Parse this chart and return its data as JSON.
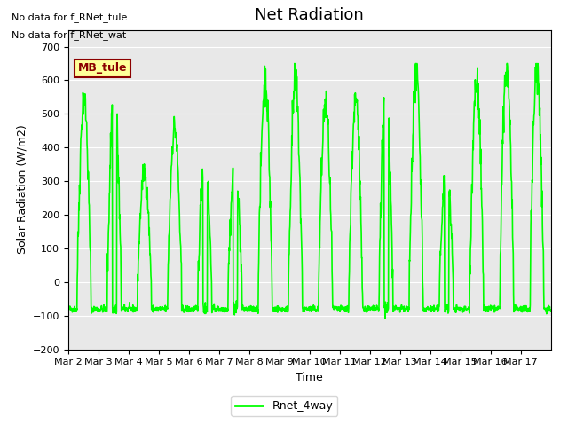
{
  "title": "Net Radiation",
  "xlabel": "Time",
  "ylabel": "Solar Radiation (W/m2)",
  "ylim": [
    -200,
    750
  ],
  "yticks": [
    -200,
    -100,
    0,
    100,
    200,
    300,
    400,
    500,
    600,
    700
  ],
  "line_color": "#00FF00",
  "line_width": 1.2,
  "bg_color": "#E8E8E8",
  "fig_color": "#FFFFFF",
  "legend_label": "Rnet_4way",
  "annotation_line1": "No data for f_RNet_tule",
  "annotation_line2": "No data for f_RNet_wat",
  "mb_tule_label": "MB_tule",
  "x_tick_labels": [
    "Mar 2",
    "Mar 3",
    "Mar 4",
    "Mar 5",
    "Mar 6",
    "Mar 7",
    "Mar 8",
    "Mar 9",
    "Mar 10",
    "Mar 11",
    "Mar 12",
    "Mar 13",
    "Mar 14",
    "Mar 15",
    "Mar 16",
    "Mar 17"
  ],
  "num_days": 16,
  "seed": 42,
  "day_peaks": [
    550,
    580,
    330,
    460,
    390,
    355,
    600,
    590,
    530,
    535,
    590,
    620,
    350,
    595,
    640,
    640
  ],
  "night_val": -80
}
